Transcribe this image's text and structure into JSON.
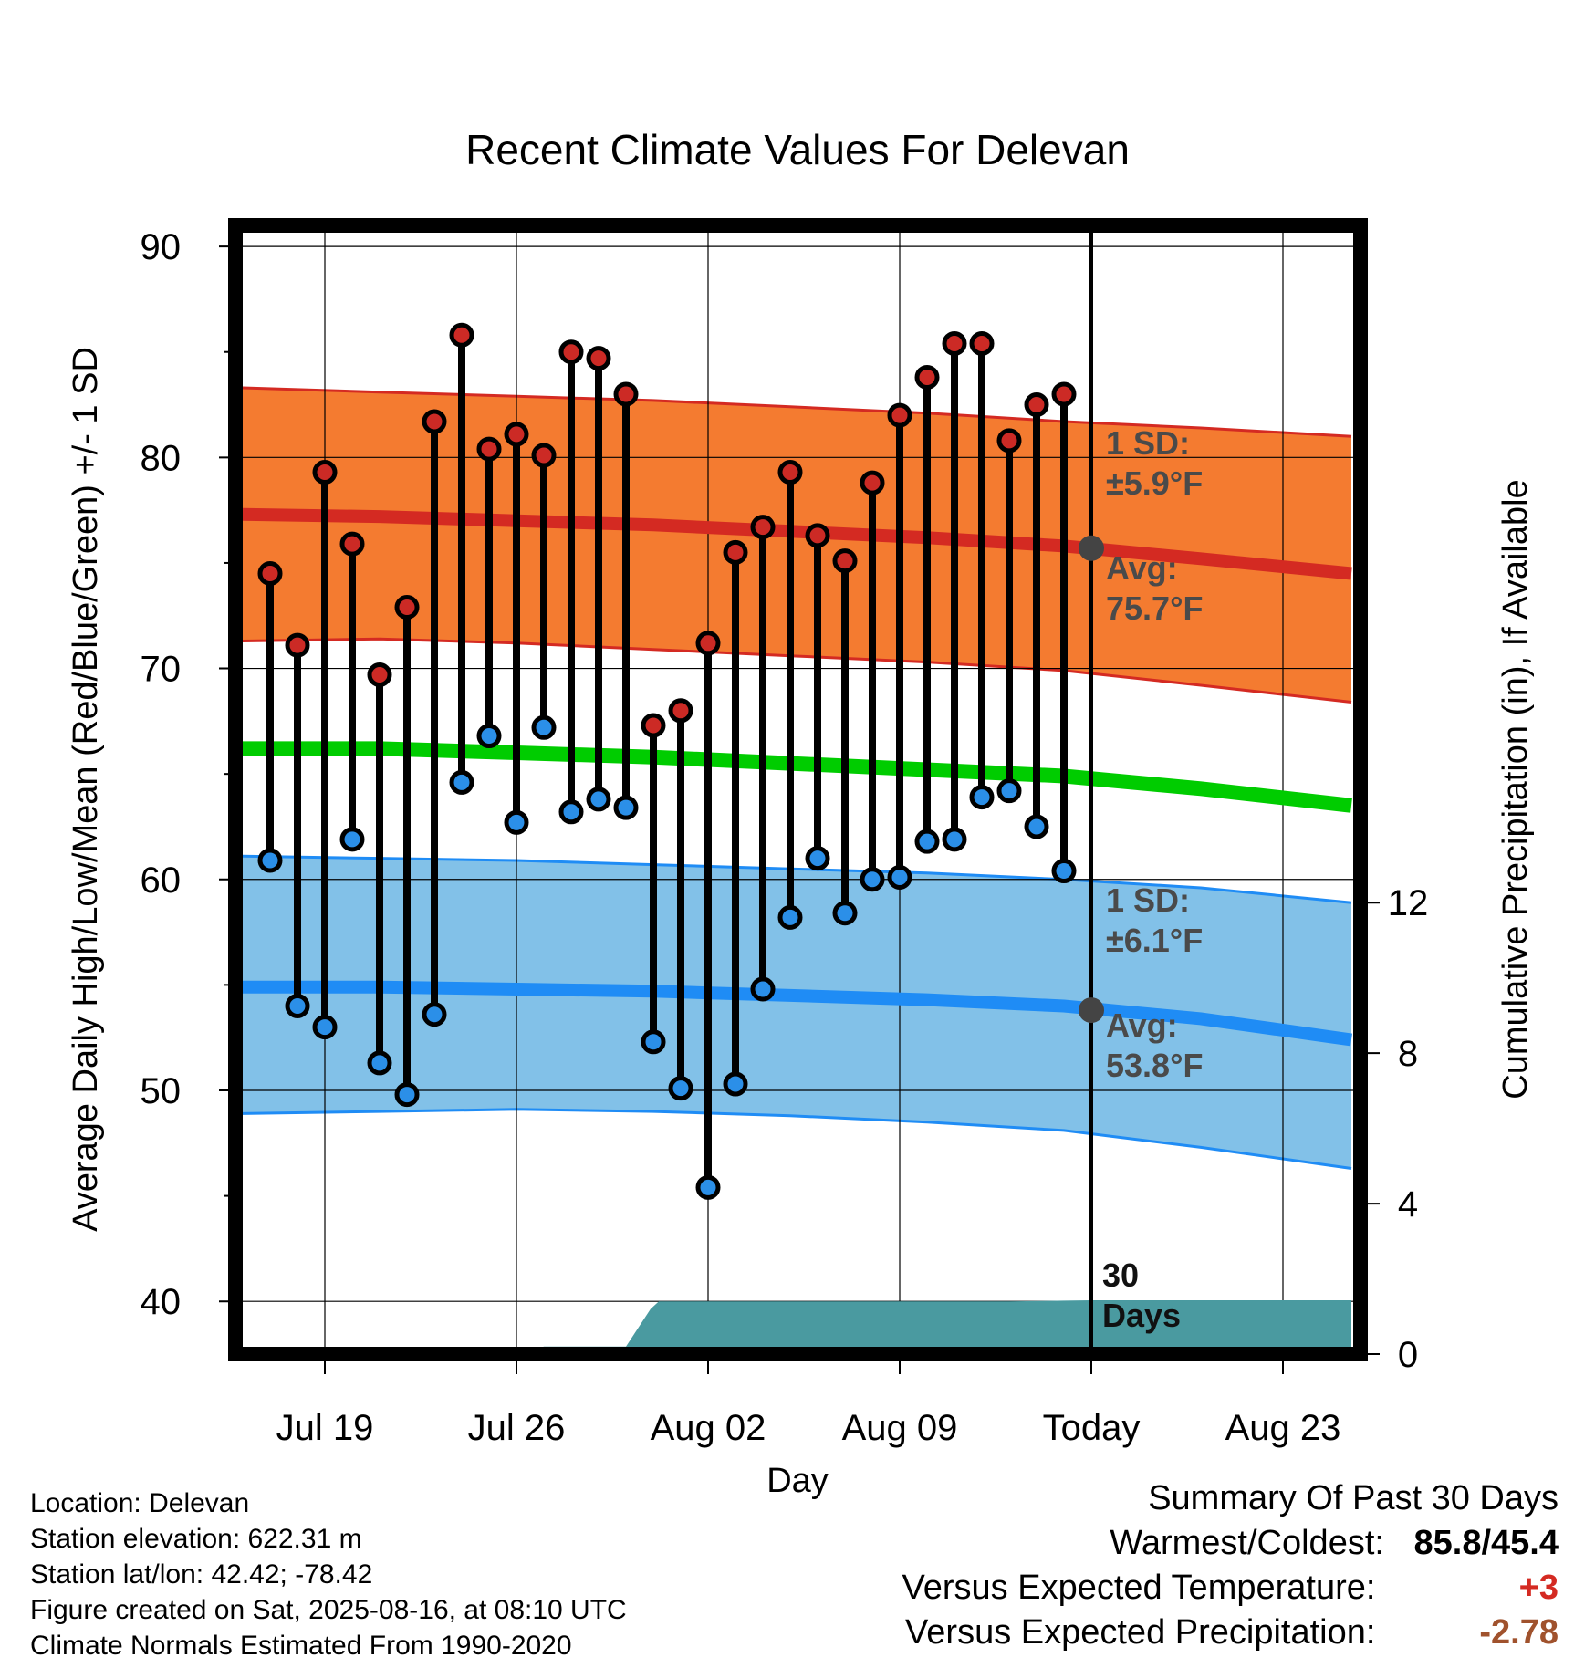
{
  "chart_data": {
    "type": "line",
    "title": "Recent Climate Values For Delevan",
    "xlabel": "Day",
    "ylabel": "Average Daily High/Low/Mean (Red/Blue/Green) +/- 1 SD",
    "y2label": "Cumulative Precipitation (in), If Available",
    "ylim": [
      37.5,
      91
    ],
    "y2lim": [
      0,
      30
    ],
    "y_ticks": [
      40,
      50,
      60,
      70,
      80,
      90
    ],
    "y2_ticks": [
      0,
      4,
      8,
      12
    ],
    "x_ticks": [
      {
        "day": 3,
        "label": "Jul 19"
      },
      {
        "day": 10,
        "label": "Jul 26"
      },
      {
        "day": 17,
        "label": "Aug 02"
      },
      {
        "day": 24,
        "label": "Aug 09"
      },
      {
        "day": 31,
        "label": "Today"
      },
      {
        "day": 38,
        "label": "Aug 23"
      }
    ],
    "today_day": 31,
    "today_label": "30\nDays",
    "grid": true,
    "colors": {
      "high": "#d42a22",
      "high_band": "#f47b30",
      "low": "#1f8cf5",
      "low_band": "#82c1e8",
      "mean": "#00cc00",
      "precip": "#4a9aa0",
      "marker_high": "#cc2a25",
      "marker_low": "#2b8fe8",
      "today_marker": "#444444"
    },
    "normals": {
      "day": [
        0,
        5,
        10,
        15,
        20,
        25,
        30,
        35,
        40.5
      ],
      "high_avg": [
        77.3,
        77.2,
        77.0,
        76.8,
        76.5,
        76.2,
        75.8,
        75.2,
        74.5
      ],
      "high_upper": [
        83.3,
        83.1,
        82.9,
        82.7,
        82.4,
        82.1,
        81.7,
        81.4,
        81.0
      ],
      "high_lower": [
        71.3,
        71.4,
        71.2,
        70.9,
        70.6,
        70.3,
        69.9,
        69.2,
        68.4
      ],
      "mean_avg": [
        66.2,
        66.2,
        66.0,
        65.8,
        65.5,
        65.2,
        64.9,
        64.3,
        63.5
      ],
      "low_avg": [
        54.9,
        54.9,
        54.8,
        54.7,
        54.5,
        54.3,
        54.0,
        53.4,
        52.4
      ],
      "low_upper": [
        61.1,
        61.0,
        60.9,
        60.7,
        60.5,
        60.3,
        60.0,
        59.6,
        58.9
      ],
      "low_lower": [
        48.9,
        49.0,
        49.1,
        49.0,
        48.8,
        48.5,
        48.1,
        47.3,
        46.3
      ]
    },
    "series": [
      {
        "name": "High",
        "x": [
          1,
          2,
          3,
          4,
          5,
          6,
          7,
          8,
          9,
          10,
          11,
          12,
          13,
          14,
          15,
          16,
          17,
          18,
          19,
          20,
          21,
          22,
          23,
          24,
          25,
          26,
          27,
          28,
          29,
          30
        ],
        "values": [
          74.5,
          71.1,
          79.3,
          75.9,
          69.7,
          72.9,
          81.7,
          85.8,
          80.4,
          81.1,
          80.1,
          85.0,
          84.7,
          83.0,
          67.3,
          68.0,
          71.2,
          75.5,
          76.7,
          79.3,
          76.3,
          75.1,
          78.8,
          82.0,
          83.8,
          85.4,
          85.4,
          80.8,
          82.5,
          83.0
        ]
      },
      {
        "name": "Low",
        "x": [
          1,
          2,
          3,
          4,
          5,
          6,
          7,
          8,
          9,
          10,
          11,
          12,
          13,
          14,
          15,
          16,
          17,
          18,
          19,
          20,
          21,
          22,
          23,
          24,
          25,
          26,
          27,
          28,
          29,
          30
        ],
        "values": [
          60.9,
          54.0,
          53.0,
          61.9,
          51.3,
          49.8,
          53.6,
          64.6,
          66.8,
          62.7,
          67.2,
          63.2,
          63.8,
          63.4,
          52.3,
          50.1,
          45.4,
          50.3,
          54.8,
          58.2,
          61.0,
          58.4,
          60.0,
          60.1,
          61.8,
          61.9,
          63.9,
          64.2,
          62.5,
          60.4
        ]
      },
      {
        "name": "Cumulative Precipitation",
        "x": [
          10.3,
          11,
          14,
          14.9,
          15.2,
          20,
          25,
          28,
          30,
          31,
          35,
          38,
          40.5
        ],
        "values": [
          0.0,
          0.2,
          0.2,
          1.2,
          1.4,
          1.4,
          1.4,
          1.4,
          1.42,
          1.43,
          1.43,
          1.43,
          1.43
        ]
      }
    ],
    "annotations": {
      "high_sd": "1 SD:",
      "high_sd_value": "±5.9°F",
      "high_avg_label": "Avg:",
      "high_avg_value": "75.7°F",
      "low_sd": "1 SD:",
      "low_sd_value": "±6.1°F",
      "low_avg_label": "Avg:",
      "low_avg_value": "53.8°F",
      "today_high_avg": 75.7,
      "today_low_avg": 53.8
    }
  },
  "info": {
    "location": "Location: Delevan",
    "elevation": "Station elevation: 622.31 m",
    "latlon": "Station lat/lon: 42.42; -78.42",
    "created": "Figure created on Sat, 2025-08-16, at 08:10 UTC",
    "normals": "Climate Normals Estimated From 1990-2020"
  },
  "summary": {
    "heading": "Summary Of Past 30 Days",
    "warmest_label": "Warmest/Coldest:",
    "warmest_value": "85.8/45.4",
    "temp_label": "Versus Expected Temperature:",
    "temp_value": "+3",
    "temp_color": "#d42a22",
    "precip_label": "Versus Expected Precipitation:",
    "precip_value": "-2.78",
    "precip_color": "#a0522d"
  }
}
